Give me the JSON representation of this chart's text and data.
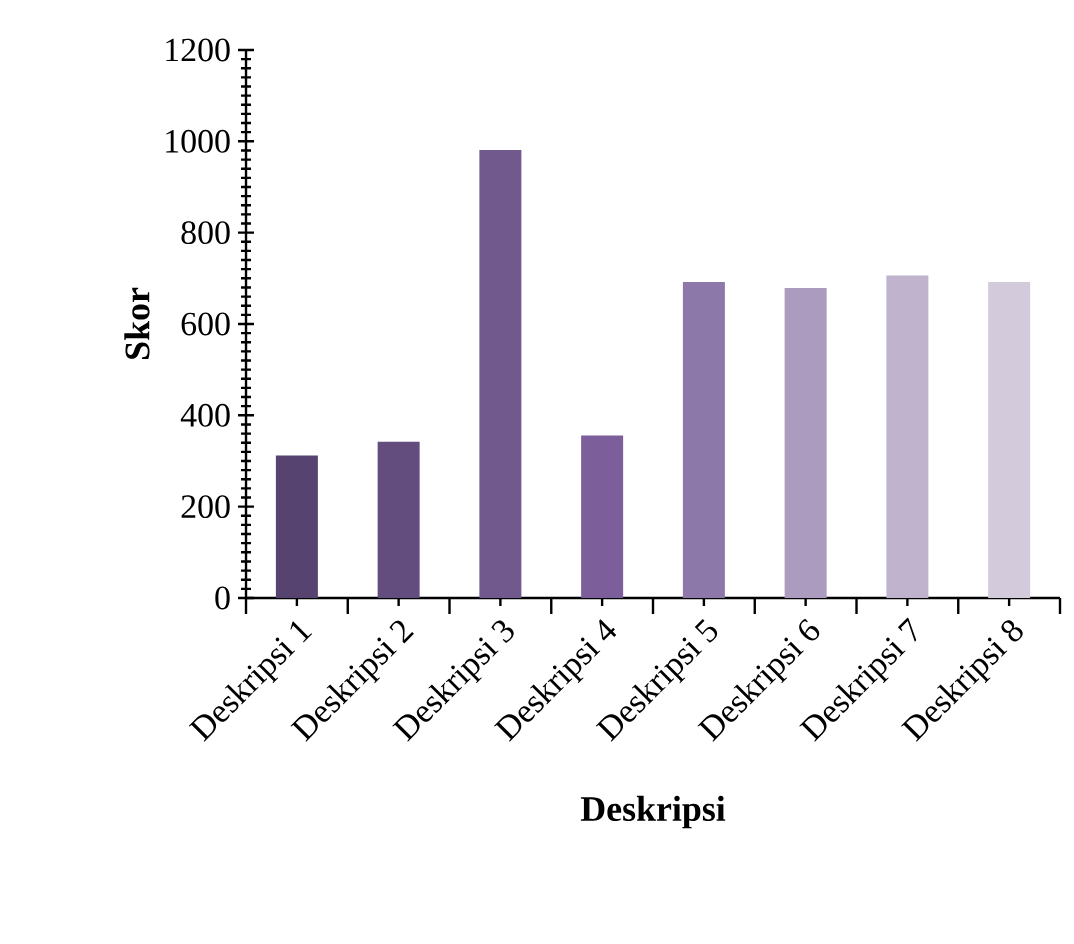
{
  "chart_data": {
    "type": "bar",
    "xlabel": "Deskripsi",
    "ylabel": "Skor",
    "categories": [
      "Deskripsi 1",
      "Deskripsi 2",
      "Deskripsi 3",
      "Deskripsi 4",
      "Deskripsi 5",
      "Deskripsi 6",
      "Deskripsi 7",
      "Deskripsi 8"
    ],
    "values": [
      312,
      342,
      981,
      356,
      692,
      679,
      706,
      692
    ],
    "colors": [
      "#574370",
      "#634d7f",
      "#72598d",
      "#7b5e9a",
      "#8d78aa",
      "#ab9bbe",
      "#bfb3cd",
      "#d3cbdc"
    ],
    "ylim": [
      0,
      1200
    ],
    "yticks": [
      0,
      200,
      400,
      600,
      800,
      1000,
      1200
    ],
    "grid": false
  }
}
